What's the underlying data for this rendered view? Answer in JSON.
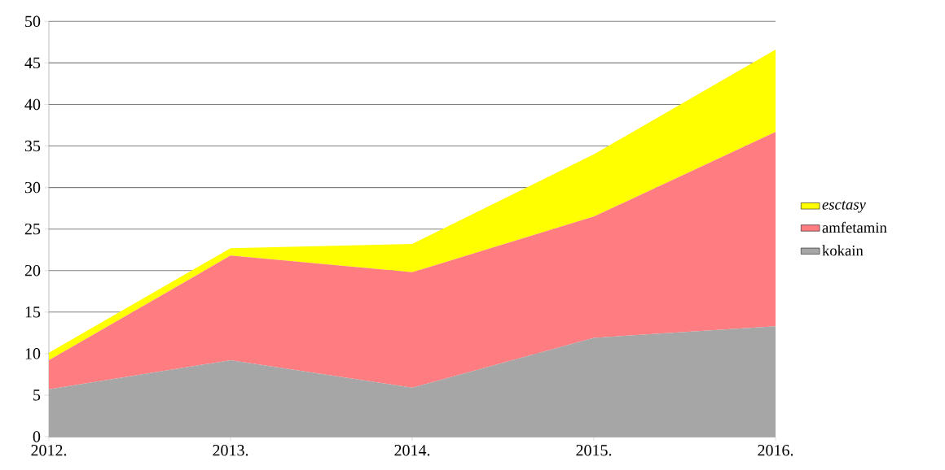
{
  "chart_data": {
    "type": "area",
    "stacked": true,
    "categories": [
      "2012.",
      "2013.",
      "2014.",
      "2015.",
      "2016."
    ],
    "series": [
      {
        "name": "kokain",
        "color": "#a6a6a6",
        "values": [
          5.7,
          9.2,
          5.9,
          11.9,
          13.3
        ]
      },
      {
        "name": "amfetamin",
        "color": "#ff7c80",
        "values": [
          3.5,
          12.6,
          13.9,
          14.6,
          23.4
        ]
      },
      {
        "name": "*esctasy*",
        "color": "#ffff00",
        "values": [
          0.9,
          0.9,
          3.4,
          7.5,
          9.9
        ]
      }
    ],
    "ylim": [
      0,
      50
    ],
    "yticks": [
      0,
      5,
      10,
      15,
      20,
      25,
      30,
      35,
      40,
      45,
      50
    ],
    "grid": "y",
    "legend": "right"
  }
}
